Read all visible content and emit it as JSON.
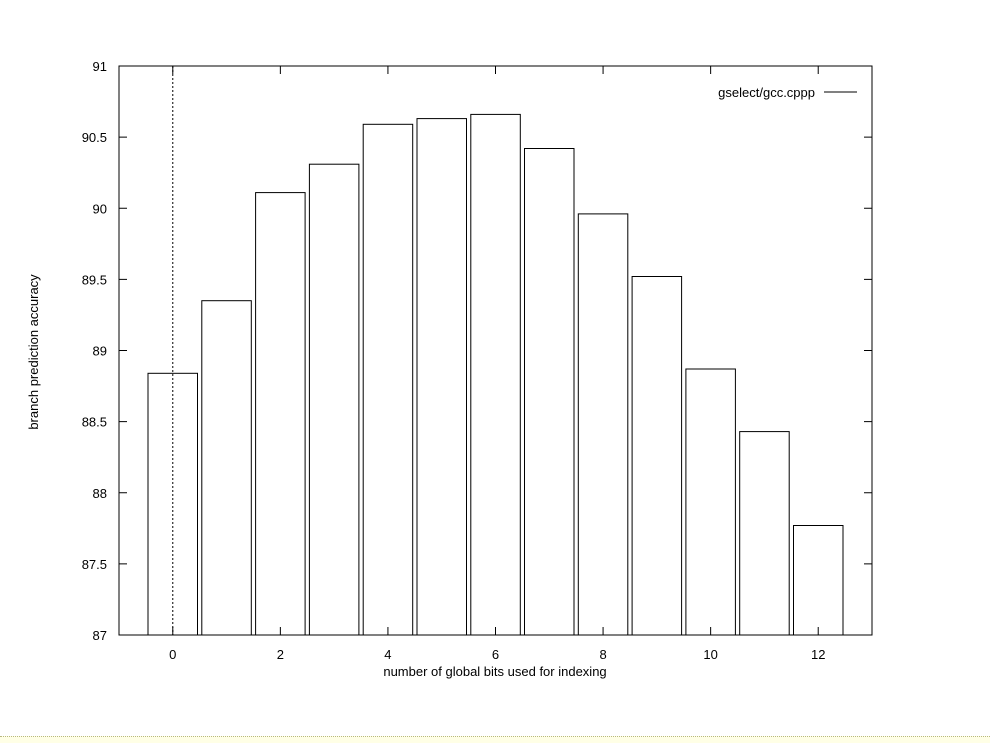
{
  "chart_data": {
    "type": "bar",
    "title": "",
    "xlabel": "number of global bits used for indexing",
    "ylabel": "branch prediction accuracy",
    "x": [
      0,
      1,
      2,
      3,
      4,
      5,
      6,
      7,
      8,
      9,
      10,
      11,
      12
    ],
    "series": [
      {
        "name": "gselect/gcc.cppp",
        "values": [
          88.84,
          89.35,
          90.11,
          90.31,
          90.59,
          90.63,
          90.66,
          90.42,
          89.96,
          89.52,
          88.87,
          88.43,
          87.77
        ]
      }
    ],
    "xlim": [
      -1,
      13
    ],
    "ylim": [
      87,
      91
    ],
    "xticks": [
      "0",
      "2",
      "4",
      "6",
      "8",
      "10",
      "12"
    ],
    "yticks": [
      "87",
      "87.5",
      "88",
      "88.5",
      "89",
      "89.5",
      "90",
      "90.5",
      "91"
    ],
    "grid": false,
    "legend_position": "top-right",
    "colors": {
      "bar_fill": "#ffffff",
      "bar_stroke": "#000000",
      "axis": "#000000"
    }
  }
}
